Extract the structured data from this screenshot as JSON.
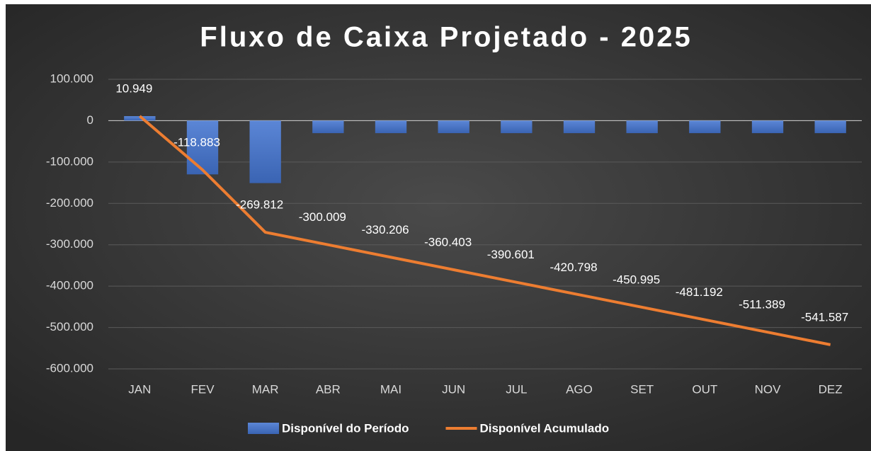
{
  "chart_data": {
    "type": "combo",
    "title": "Fluxo de Caixa Projetado - 2025",
    "categories": [
      "JAN",
      "FEV",
      "MAR",
      "ABR",
      "MAI",
      "JUN",
      "JUL",
      "AGO",
      "SET",
      "OUT",
      "NOV",
      "DEZ"
    ],
    "series": [
      {
        "name": "Disponível do Período",
        "type": "bar",
        "color": "#4472c4",
        "values": [
          10949,
          -129832,
          -150929,
          -30197,
          -30197,
          -30197,
          -30198,
          -30197,
          -30197,
          -30197,
          -30197,
          -30198
        ]
      },
      {
        "name": "Disponível Acumulado",
        "type": "line",
        "color": "#ed7d31",
        "values": [
          10949,
          -118883,
          -269812,
          -300009,
          -330206,
          -360403,
          -390601,
          -420798,
          -450995,
          -481192,
          -511389,
          -541587
        ],
        "value_labels": [
          "10.949",
          "-118.883",
          "-269.812",
          "-300.009",
          "-330.206",
          "-360.403",
          "-390.601",
          "-420.798",
          "-450.995",
          "-481.192",
          "-511.389",
          "-541.587"
        ]
      }
    ],
    "ylim": [
      -600000,
      100000
    ],
    "yticks": [
      {
        "value": 100000,
        "label": "100.000"
      },
      0,
      {
        "value": -100000,
        "label": "-100.000"
      },
      {
        "value": -200000,
        "label": "-200.000"
      },
      {
        "value": -300000,
        "label": "-300.000"
      },
      {
        "value": -400000,
        "label": "-400.000"
      },
      {
        "value": -500000,
        "label": "-500.000"
      },
      {
        "value": -600000,
        "label": "-600.000"
      }
    ],
    "grid": true,
    "legend": "bottom"
  }
}
